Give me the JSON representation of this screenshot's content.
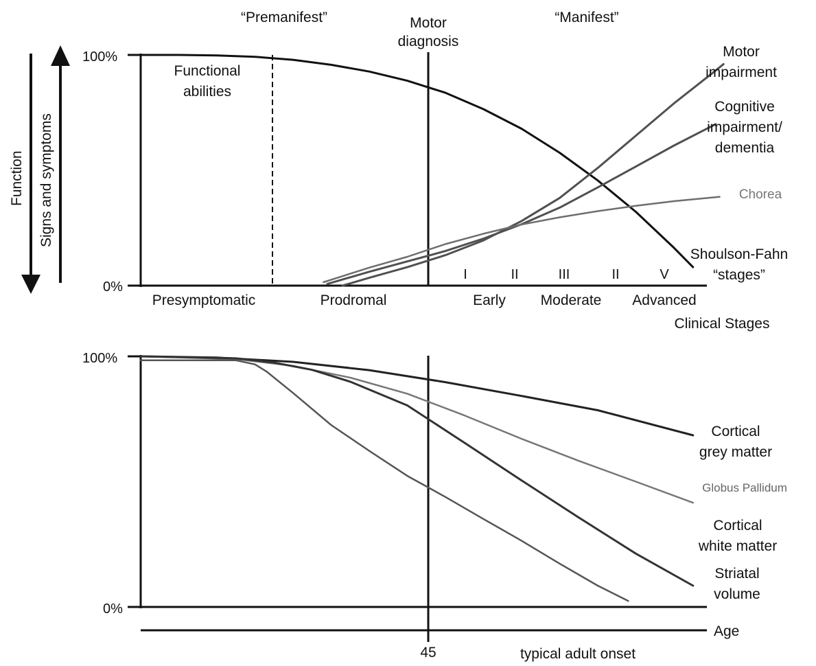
{
  "chart_data": [
    {
      "type": "line",
      "title": "",
      "axis_text": {
        "function_label": "Function",
        "symptoms_label": "Signs and symptoms",
        "y_top": "100%",
        "y_bottom": "0%"
      },
      "y_range": [
        0,
        100
      ],
      "phase_labels": {
        "premanifest": "“Premanifest”",
        "manifest": "“Manifest”",
        "motor_diagnosis_line1": "Motor",
        "motor_diagnosis_line2": "diagnosis"
      },
      "clinical_stages": [
        "Presymptomatic",
        "Prodromal",
        "Early",
        "Moderate",
        "Advanced"
      ],
      "clinical_stages_title": "Clinical Stages",
      "shoulson_fahn_stages": [
        "I",
        "II",
        "III",
        "II",
        "V"
      ],
      "shoulson_fahn_label_line1": "Shoulson-Fahn",
      "shoulson_fahn_label_line2": "“stages”",
      "functional_abilities_line1": "Functional",
      "functional_abilities_line2": "abilities",
      "grid": false,
      "series": [
        {
          "name": "Functional abilities",
          "color": "#111111",
          "points": [
            [
              0,
              100
            ],
            [
              10,
              100
            ],
            [
              20,
              99.8
            ],
            [
              30,
              99.2
            ],
            [
              40,
              97.9
            ],
            [
              50,
              95.7
            ],
            [
              60,
              92.8
            ],
            [
              70,
              88.8
            ],
            [
              80,
              83.6
            ],
            [
              90,
              76.5
            ],
            [
              100,
              68
            ],
            [
              110,
              57.6
            ],
            [
              120,
              45.6
            ],
            [
              130,
              32
            ],
            [
              140,
              16.4
            ],
            [
              145,
              8
            ]
          ]
        },
        {
          "name": "Motor impairment",
          "label_lines": [
            "Motor",
            "impairment"
          ],
          "color": "#505050",
          "points": [
            [
              53,
              0
            ],
            [
              60,
              3.4
            ],
            [
              70,
              8
            ],
            [
              80,
              13.2
            ],
            [
              90,
              19.6
            ],
            [
              100,
              28
            ],
            [
              110,
              38
            ],
            [
              120,
              51
            ],
            [
              130,
              65
            ],
            [
              140,
              79
            ],
            [
              150,
              92
            ],
            [
              153,
              96
            ]
          ]
        },
        {
          "name": "Cognitive impairment/ dementia",
          "label_lines": [
            "Cognitive",
            "impairment/",
            "dementia"
          ],
          "color": "#505050",
          "points": [
            [
              49,
              0.7
            ],
            [
              60,
              6
            ],
            [
              70,
              10.5
            ],
            [
              80,
              15
            ],
            [
              90,
              20.4
            ],
            [
              100,
              26.6
            ],
            [
              110,
              33.8
            ],
            [
              120,
              42.6
            ],
            [
              130,
              51.6
            ],
            [
              140,
              60.7
            ],
            [
              151,
              70
            ]
          ]
        },
        {
          "name": "Chorea",
          "label_lines": [
            "Chorea"
          ],
          "color": "#6e6e6e",
          "points": [
            [
              48,
              1.5
            ],
            [
              60,
              7.8
            ],
            [
              70,
              12.5
            ],
            [
              80,
              18
            ],
            [
              90,
              22.5
            ],
            [
              100,
              26.5
            ],
            [
              110,
              29.6
            ],
            [
              120,
              32.3
            ],
            [
              130,
              34.6
            ],
            [
              140,
              36.6
            ],
            [
              152,
              38.5
            ]
          ]
        }
      ]
    },
    {
      "type": "line",
      "title": "",
      "axis_text": {
        "y_top": "100%",
        "y_bottom": "0%",
        "x_axis_label": "Age",
        "onset_age": "45",
        "onset_caption": "typical adult onset"
      },
      "y_range": [
        0,
        100
      ],
      "grid": false,
      "series": [
        {
          "name": "Cortical grey matter",
          "label_lines": [
            "Cortical",
            "grey matter"
          ],
          "color": "#222222",
          "points": [
            [
              0,
              100
            ],
            [
              20,
              99.5
            ],
            [
              40,
              97.8
            ],
            [
              60,
              94.5
            ],
            [
              80,
              89.7
            ],
            [
              100,
              84.2
            ],
            [
              120,
              78.5
            ],
            [
              145,
              68.5
            ]
          ]
        },
        {
          "name": "Globus Pallidum",
          "label_lines": [
            "Globus Pallidum"
          ],
          "color": "#777777",
          "points": [
            [
              0,
              100
            ],
            [
              25,
              98.9
            ],
            [
              40,
              96.2
            ],
            [
              55,
              91.5
            ],
            [
              70,
              85.1
            ],
            [
              85,
              76.4
            ],
            [
              100,
              67.1
            ],
            [
              115,
              58.3
            ],
            [
              130,
              50
            ],
            [
              145,
              41.6
            ]
          ]
        },
        {
          "name": "Cortical white matter",
          "label_lines": [
            "Cortical",
            "white matter"
          ],
          "color": "#333333",
          "points": [
            [
              0,
              100
            ],
            [
              25,
              99.2
            ],
            [
              35,
              97.5
            ],
            [
              45,
              94.6
            ],
            [
              55,
              89.9
            ],
            [
              70,
              80.4
            ],
            [
              85,
              65.5
            ],
            [
              100,
              50.5
            ],
            [
              115,
              35.7
            ],
            [
              130,
              21.3
            ],
            [
              145,
              8.5
            ]
          ]
        },
        {
          "name": "Striatal volume",
          "label_lines": [
            "Striatal",
            "volume"
          ],
          "color": "#555555",
          "points": [
            [
              0,
              98.4
            ],
            [
              25,
              98.4
            ],
            [
              30,
              96.8
            ],
            [
              33,
              94
            ],
            [
              40,
              85.4
            ],
            [
              50,
              72.6
            ],
            [
              60,
              62.3
            ],
            [
              70,
              52.3
            ],
            [
              80,
              43.9
            ],
            [
              90,
              35.1
            ],
            [
              100,
              26.4
            ],
            [
              110,
              17.3
            ],
            [
              120,
              8.5
            ],
            [
              128,
              2.4
            ]
          ]
        }
      ]
    }
  ]
}
